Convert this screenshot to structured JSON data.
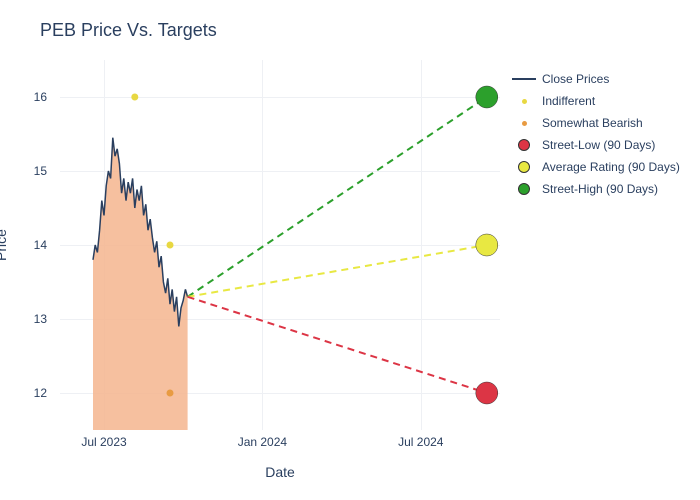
{
  "title": "PEB Price Vs. Targets",
  "xlabel": "Date",
  "ylabel": "Price",
  "ylim": [
    11.5,
    16.5
  ],
  "ytick_step": 1,
  "yticks": [
    12,
    13,
    14,
    15,
    16
  ],
  "xticks": [
    {
      "label": "Jul 2023",
      "t": 0.1
    },
    {
      "label": "Jan 2024",
      "t": 0.46
    },
    {
      "label": "Jul 2024",
      "t": 0.82
    }
  ],
  "x_range": [
    0,
    1
  ],
  "background_color": "#ffffff",
  "grid_color": "#eef0f4",
  "title_color": "#2a3f5f",
  "label_color": "#2a3f5f",
  "title_fontsize": 18,
  "label_fontsize": 14,
  "tick_fontsize": 12,
  "series": {
    "close_prices": {
      "type": "line+fill",
      "line_color": "#2a3f5f",
      "line_width": 1.5,
      "fill_color": "#f5b58e",
      "fill_opacity": 0.85,
      "points": [
        [
          0.075,
          13.8
        ],
        [
          0.08,
          14.0
        ],
        [
          0.085,
          13.9
        ],
        [
          0.09,
          14.2
        ],
        [
          0.095,
          14.6
        ],
        [
          0.1,
          14.4
        ],
        [
          0.105,
          14.8
        ],
        [
          0.11,
          15.0
        ],
        [
          0.115,
          14.9
        ],
        [
          0.12,
          15.45
        ],
        [
          0.125,
          15.2
        ],
        [
          0.13,
          15.3
        ],
        [
          0.135,
          15.1
        ],
        [
          0.14,
          14.7
        ],
        [
          0.145,
          14.9
        ],
        [
          0.15,
          14.6
        ],
        [
          0.155,
          14.85
        ],
        [
          0.16,
          14.7
        ],
        [
          0.165,
          14.9
        ],
        [
          0.17,
          14.5
        ],
        [
          0.175,
          14.75
        ],
        [
          0.18,
          14.6
        ],
        [
          0.185,
          14.8
        ],
        [
          0.19,
          14.4
        ],
        [
          0.195,
          14.55
        ],
        [
          0.2,
          14.2
        ],
        [
          0.205,
          14.35
        ],
        [
          0.21,
          14.1
        ],
        [
          0.215,
          13.9
        ],
        [
          0.22,
          14.05
        ],
        [
          0.225,
          13.7
        ],
        [
          0.23,
          13.85
        ],
        [
          0.235,
          13.5
        ],
        [
          0.24,
          13.35
        ],
        [
          0.245,
          13.55
        ],
        [
          0.25,
          13.2
        ],
        [
          0.255,
          13.4
        ],
        [
          0.26,
          13.1
        ],
        [
          0.265,
          13.3
        ],
        [
          0.27,
          12.9
        ],
        [
          0.275,
          13.15
        ],
        [
          0.28,
          13.25
        ],
        [
          0.285,
          13.4
        ],
        [
          0.29,
          13.3
        ]
      ]
    },
    "indifferent": {
      "type": "scatter",
      "marker_color": "#e8d842",
      "marker_size": 5,
      "points": [
        [
          0.17,
          16.0
        ],
        [
          0.25,
          14.0
        ]
      ]
    },
    "somewhat_bearish": {
      "type": "scatter",
      "marker_color": "#e89b42",
      "marker_size": 5,
      "points": [
        [
          0.25,
          12.0
        ]
      ]
    },
    "projection_low": {
      "type": "dashed_line+marker",
      "line_color": "#dc3545",
      "marker_color": "#dc3545",
      "marker_size": 11,
      "start": [
        0.29,
        13.3
      ],
      "end": [
        0.97,
        12.0
      ]
    },
    "projection_avg": {
      "type": "dashed_line+marker",
      "line_color": "#e8e842",
      "marker_color": "#e8e842",
      "marker_size": 11,
      "start": [
        0.29,
        13.3
      ],
      "end": [
        0.97,
        14.0
      ]
    },
    "projection_high": {
      "type": "dashed_line+marker",
      "line_color": "#2ca02c",
      "marker_color": "#2ca02c",
      "marker_size": 11,
      "start": [
        0.29,
        13.3
      ],
      "end": [
        0.97,
        16.0
      ]
    }
  },
  "legend": [
    {
      "label": "Close Prices",
      "type": "line",
      "color": "#2a3f5f",
      "width": 2
    },
    {
      "label": "Indifferent",
      "type": "dot",
      "color": "#e8d842",
      "size": 5
    },
    {
      "label": "Somewhat Bearish",
      "type": "dot",
      "color": "#e89b42",
      "size": 5
    },
    {
      "label": "Street-Low (90 Days)",
      "type": "dot",
      "color": "#dc3545",
      "size": 12
    },
    {
      "label": "Average Rating (90 Days)",
      "type": "dot",
      "color": "#e8e842",
      "size": 12
    },
    {
      "label": "Street-High (90 Days)",
      "type": "dot",
      "color": "#2ca02c",
      "size": 12
    }
  ]
}
